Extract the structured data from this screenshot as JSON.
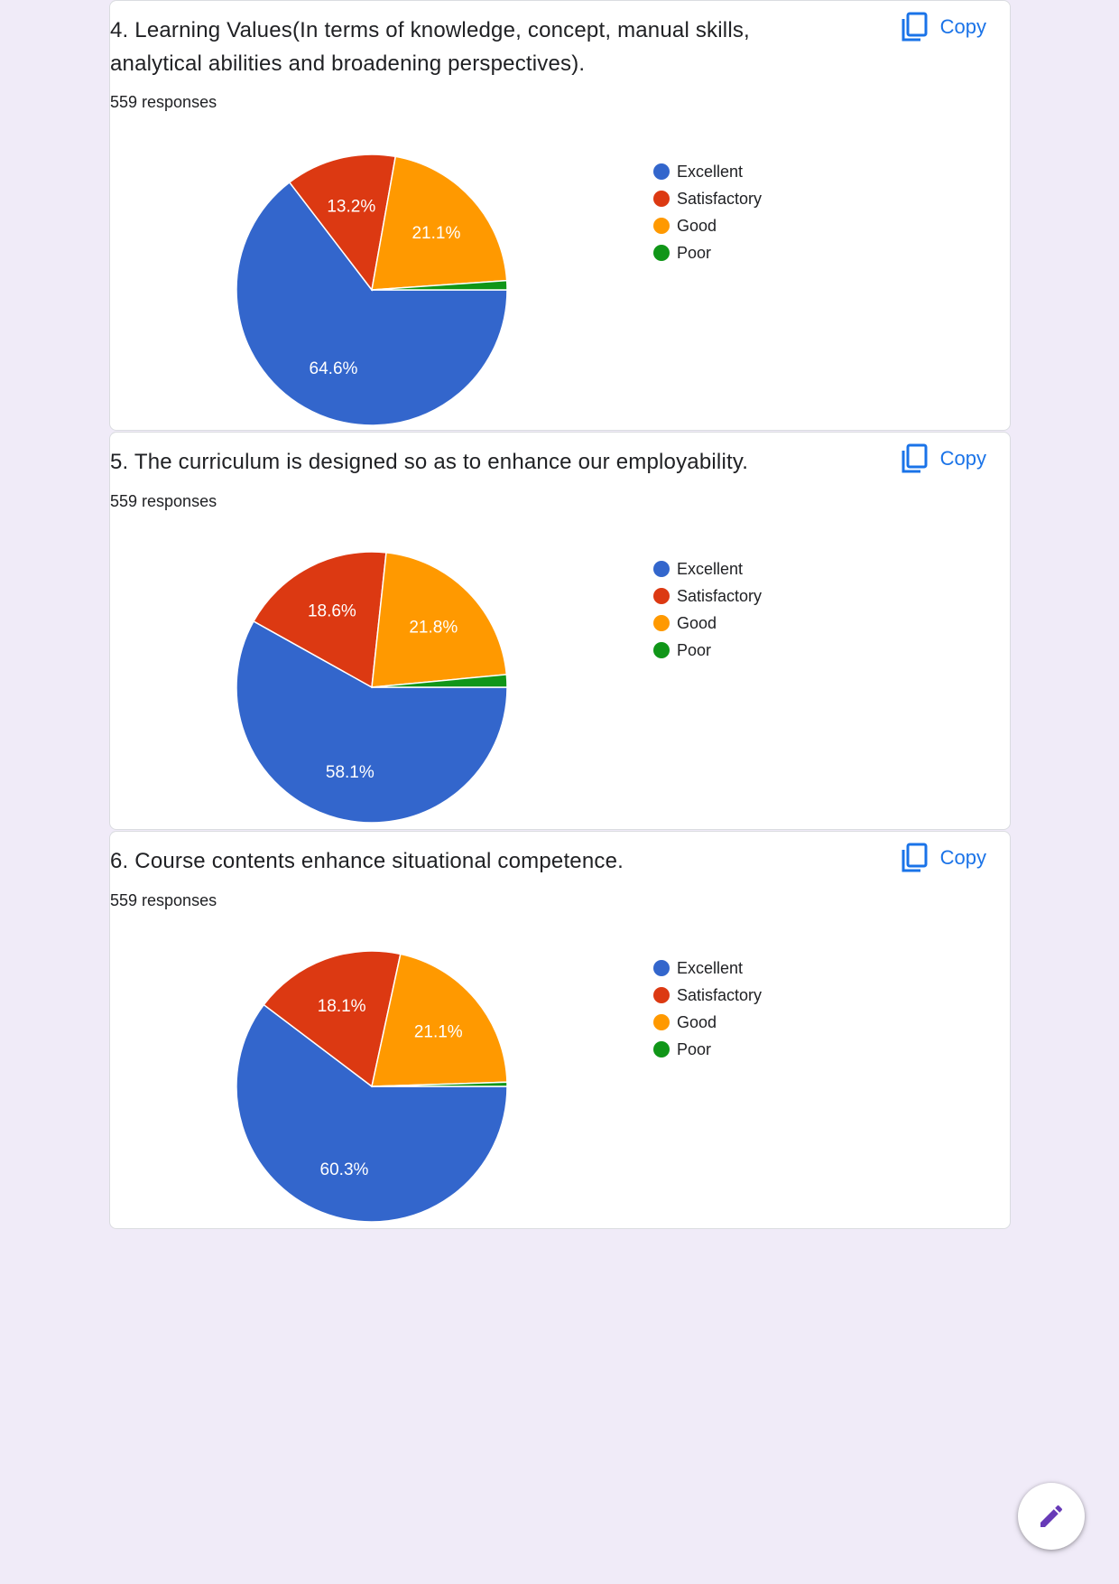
{
  "colors": {
    "excellent": "#3366cc",
    "satisfactory": "#dc3912",
    "good": "#ff9900",
    "poor": "#109618",
    "accent": "#1a73e8",
    "fab_icon": "#673ab7",
    "page_bg": "#f0ebf8"
  },
  "copy_label": "Copy",
  "icons": {
    "copy": "copy-icon",
    "edit": "pencil-icon"
  },
  "chart_data": [
    {
      "type": "pie",
      "title": "4. Learning Values(In terms of knowledge, concept, manual skills, analytical abilities and broadening perspectives).",
      "responses": "559 responses",
      "categories": [
        "Excellent",
        "Satisfactory",
        "Good",
        "Poor"
      ],
      "values": [
        64.6,
        13.2,
        21.1,
        1.1
      ],
      "data_labels": [
        "64.6%",
        "13.2%",
        "21.1%",
        ""
      ],
      "legend_position": "right"
    },
    {
      "type": "pie",
      "title": "5. The curriculum is designed so as to enhance our employability.",
      "responses": "559 responses",
      "categories": [
        "Excellent",
        "Satisfactory",
        "Good",
        "Poor"
      ],
      "values": [
        58.1,
        18.6,
        21.8,
        1.5
      ],
      "data_labels": [
        "58.1%",
        "18.6%",
        "21.8%",
        ""
      ],
      "legend_position": "right"
    },
    {
      "type": "pie",
      "title": "6. Course contents enhance situational competence.",
      "responses": "559 responses",
      "categories": [
        "Excellent",
        "Satisfactory",
        "Good",
        "Poor"
      ],
      "values": [
        60.3,
        18.1,
        21.1,
        0.5
      ],
      "data_labels": [
        "60.3%",
        "18.1%",
        "21.1%",
        ""
      ],
      "legend_position": "right"
    }
  ]
}
